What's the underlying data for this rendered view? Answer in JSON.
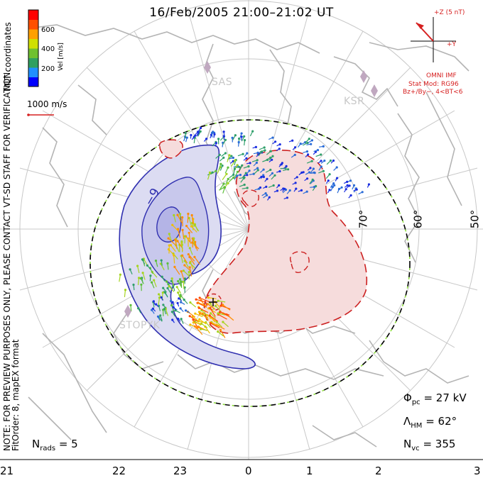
{
  "title": "16/Feb/2005 21:00–21:02 UT",
  "colorbar": {
    "ticks": [
      "600",
      "400",
      "200"
    ],
    "label": "Vel [m/s]",
    "colors": [
      "#0000ff",
      "#2090ff",
      "#30a060",
      "#70c030",
      "#d0e000",
      "#ffa000",
      "#ff5000",
      "#ff0000"
    ]
  },
  "coordinates_label": "MLT coordinates",
  "velocity_scale": "1000 m/s",
  "imf": {
    "label_z": "+Z (5 nT)",
    "label_y": "+Y",
    "title": "OMNI IMF",
    "model_line1": "Stat Mod: RG96",
    "model_line2": "Bz+/By−, 4<BT<6"
  },
  "stations": [
    "SAS",
    "KSR",
    "STO",
    "PYK"
  ],
  "latitude_labels": [
    "70°",
    "60°",
    "50°"
  ],
  "mlt_labels": [
    "21",
    "22",
    "23",
    "0",
    "1",
    "2",
    "3"
  ],
  "contour_labels": {
    "min_label": "−9",
    "plus_marker": "+"
  },
  "params": {
    "phi_sym": "Φ",
    "phi_sub": "pc",
    "phi_val": "= 27 kV",
    "lambda_sym": "Λ",
    "lambda_sub": "HM",
    "lambda_val": "= 62°",
    "nvc_sym": "N",
    "nvc_sub": "vc",
    "nvc_val": "= 355",
    "nrads_sym": "N",
    "nrads_sub": "rads",
    "nrads_val": "= 5"
  },
  "notes": {
    "line1": "NOTE: FOR PREVIEW PURPOSES ONLY, PLEASE CONTACT VT-SD STAFF FOR VERIFICATION.",
    "line2": "FitOrder: 8, mapEX format"
  },
  "colors": {
    "negative_cell": "#3030b0",
    "negative_fill": "#dcdcf2",
    "positive_cell": "#cc2020",
    "positive_fill": "#f6dcdc",
    "boundary_dash": "#90e040",
    "grid": "#c8c8c8",
    "coast": "#b0b0b0"
  }
}
